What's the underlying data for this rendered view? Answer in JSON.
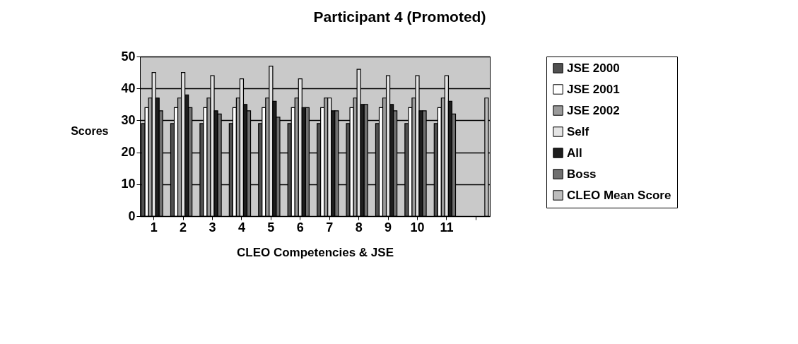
{
  "chart_data": {
    "type": "bar",
    "title": "Participant 4 (Promoted)",
    "xlabel": "CLEO Competencies & JSE",
    "ylabel": "Scores",
    "categories": [
      "1",
      "2",
      "3",
      "4",
      "5",
      "6",
      "7",
      "8",
      "9",
      "10",
      "11",
      null
    ],
    "series": [
      {
        "name": "JSE 2000",
        "color": "#505050",
        "values": [
          29,
          29,
          29,
          29,
          29,
          29,
          29,
          29,
          29,
          29,
          29,
          null
        ]
      },
      {
        "name": "JSE 2001",
        "color": "#ffffff",
        "values": [
          34,
          34,
          34,
          34,
          34,
          34,
          34,
          34,
          34,
          34,
          34,
          null
        ]
      },
      {
        "name": "JSE 2002",
        "color": "#9a9a9a",
        "values": [
          37,
          37,
          37,
          37,
          37,
          37,
          37,
          37,
          37,
          37,
          37,
          null
        ]
      },
      {
        "name": "Self",
        "color": "#e4e4e4",
        "values": [
          45,
          45,
          44,
          43,
          47,
          43,
          37,
          46,
          44,
          44,
          44,
          null
        ]
      },
      {
        "name": "All",
        "color": "#1e1e1e",
        "values": [
          37,
          38,
          33,
          35,
          36,
          34,
          33,
          35,
          35,
          33,
          36,
          null
        ]
      },
      {
        "name": "Boss",
        "color": "#707070",
        "values": [
          33,
          34,
          32,
          33,
          31,
          34,
          33,
          35,
          33,
          33,
          32,
          null
        ]
      },
      {
        "name": "CLEO Mean Score",
        "color": "#bdbdbd",
        "values": [
          null,
          null,
          null,
          null,
          null,
          null,
          null,
          null,
          null,
          null,
          null,
          37
        ]
      }
    ],
    "ylim": [
      0,
      50
    ],
    "yticks": [
      0,
      10,
      20,
      30,
      40,
      50
    ],
    "grid": "y",
    "legend": "right"
  }
}
